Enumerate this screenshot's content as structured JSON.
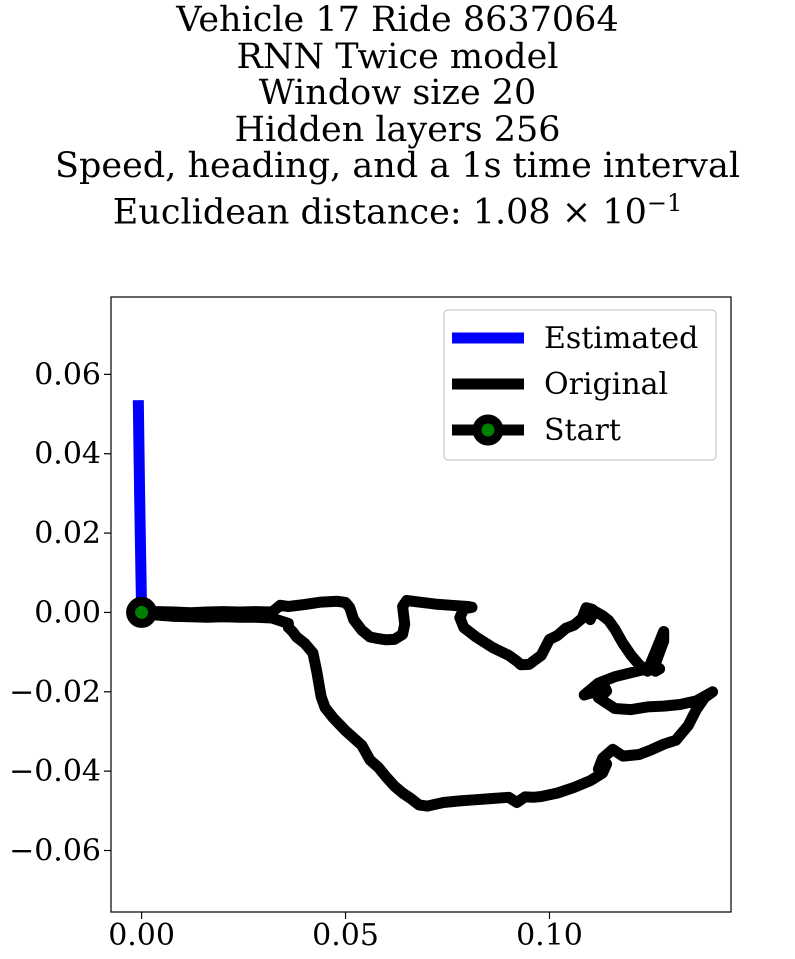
{
  "title_lines": [
    "Vehicle 17 Ride 8637064",
    "RNN Twice model",
    "Window size 20",
    "Hidden layers 256",
    "Speed, heading, and a 1s time interval"
  ],
  "title_metric": {
    "label": "Euclidean distance: 1.08",
    "times": "×",
    "base": "10",
    "exponent": "−1"
  },
  "chart_data": {
    "type": "line",
    "xlim": [
      -0.0075,
      0.1445
    ],
    "ylim": [
      -0.0755,
      0.0795
    ],
    "x_ticks": [
      0.0,
      0.05,
      0.1
    ],
    "x_tick_labels": [
      "0.00",
      "0.05",
      "0.10"
    ],
    "y_ticks": [
      0.06,
      0.04,
      0.02,
      0.0,
      -0.02,
      -0.04,
      -0.06
    ],
    "y_tick_labels": [
      "0.06",
      "0.04",
      "0.02",
      "0.00",
      "−0.02",
      "−0.04",
      "−0.06"
    ],
    "grid": false,
    "legend_position": "top-right",
    "legend": [
      "Estimated",
      "Original",
      "Start"
    ],
    "colors": {
      "estimated": "#0000ff",
      "original": "#000000",
      "start_marker_face": "#008000",
      "start_marker_edge": "#000000"
    },
    "series": [
      {
        "name": "Estimated",
        "x": [
          -0.0008,
          -0.0005,
          0.0
        ],
        "y": [
          0.0535,
          0.03,
          0.0
        ]
      },
      {
        "name": "Original",
        "x": [
          0.0,
          0.004,
          0.008,
          0.012,
          0.016,
          0.02,
          0.024,
          0.028,
          0.032,
          0.034,
          0.036,
          0.04,
          0.044,
          0.048,
          0.05,
          0.051,
          0.052,
          0.054,
          0.056,
          0.058,
          0.06,
          0.062,
          0.064,
          0.0645,
          0.064,
          0.065,
          0.068,
          0.072,
          0.076,
          0.08,
          0.081,
          0.079,
          0.078,
          0.079,
          0.082,
          0.086,
          0.09,
          0.092,
          0.093,
          0.095,
          0.098,
          0.1,
          0.102,
          0.104,
          0.106,
          0.108,
          0.109,
          0.1105,
          0.11,
          0.1108,
          0.113,
          0.1145,
          0.116,
          0.118,
          0.12,
          0.122,
          0.124,
          0.126,
          0.128,
          0.128,
          0.126,
          0.125,
          0.126,
          0.127,
          0.124,
          0.12,
          0.116,
          0.112,
          0.1085,
          0.1105,
          0.1125,
          0.1135,
          0.114,
          0.113,
          0.112,
          0.116,
          0.12,
          0.124,
          0.128,
          0.132,
          0.136,
          0.14,
          0.138,
          0.136,
          0.134,
          0.131,
          0.128,
          0.125,
          0.122,
          0.118,
          0.1155,
          0.113,
          0.112,
          0.114,
          0.113,
          0.11,
          0.106,
          0.102,
          0.098,
          0.096,
          0.094,
          0.092,
          0.09,
          0.086,
          0.082,
          0.078,
          0.074,
          0.07,
          0.068,
          0.066,
          0.064,
          0.062,
          0.06,
          0.058,
          0.056,
          0.054,
          0.05,
          0.047,
          0.045,
          0.044,
          0.0435,
          0.043,
          0.042,
          0.04,
          0.038,
          0.037,
          0.036,
          0.036,
          0.034,
          0.032,
          0.028,
          0.024,
          0.02,
          0.016,
          0.012,
          0.008,
          0.004,
          0.0
        ],
        "y": [
          0.0,
          0.0002,
          0.0001,
          -0.0001,
          0.0001,
          0.0002,
          0.0001,
          0.0002,
          0.0001,
          0.0018,
          0.0015,
          0.002,
          0.0026,
          0.0028,
          0.0025,
          0.0013,
          -0.0018,
          -0.0045,
          -0.0062,
          -0.0066,
          -0.0069,
          -0.0068,
          -0.0055,
          -0.003,
          0.0015,
          0.003,
          0.0026,
          0.0021,
          0.0018,
          0.0015,
          0.0013,
          0.0009,
          -0.0013,
          -0.0038,
          -0.0062,
          -0.0088,
          -0.0108,
          -0.0123,
          -0.0132,
          -0.0131,
          -0.0108,
          -0.0068,
          -0.0058,
          -0.004,
          -0.0032,
          -0.0015,
          0.0012,
          0.0008,
          -0.0018,
          0.0005,
          -0.0008,
          -0.002,
          -0.0042,
          -0.0078,
          -0.0108,
          -0.0132,
          -0.0148,
          -0.0099,
          -0.0048,
          -0.0072,
          -0.0128,
          -0.0143,
          -0.0148,
          -0.0142,
          -0.0142,
          -0.0152,
          -0.0162,
          -0.0178,
          -0.0208,
          -0.0202,
          -0.0198,
          -0.0188,
          -0.0198,
          -0.0208,
          -0.0215,
          -0.0242,
          -0.0245,
          -0.0238,
          -0.0236,
          -0.0232,
          -0.0223,
          -0.02,
          -0.0215,
          -0.0245,
          -0.0285,
          -0.0322,
          -0.0332,
          -0.0346,
          -0.0358,
          -0.0362,
          -0.0345,
          -0.0368,
          -0.0395,
          -0.0382,
          -0.0405,
          -0.0424,
          -0.0441,
          -0.0455,
          -0.0464,
          -0.0466,
          -0.0465,
          -0.0479,
          -0.0466,
          -0.0469,
          -0.0472,
          -0.0475,
          -0.0479,
          -0.0488,
          -0.0485,
          -0.0469,
          -0.0455,
          -0.0438,
          -0.0415,
          -0.039,
          -0.0372,
          -0.0335,
          -0.0298,
          -0.0266,
          -0.024,
          -0.0212,
          -0.0182,
          -0.0152,
          -0.0102,
          -0.0078,
          -0.0062,
          -0.0048,
          -0.0038,
          -0.0028,
          -0.0021,
          -0.0014,
          -0.0012,
          -0.0012,
          -0.0011,
          -0.0012,
          -0.0011,
          -0.001,
          -0.0007,
          0.0
        ],
        "line_width": 11
      },
      {
        "name": "Start",
        "x": [
          0.0
        ],
        "y": [
          0.0
        ],
        "marker": "circle"
      }
    ]
  }
}
